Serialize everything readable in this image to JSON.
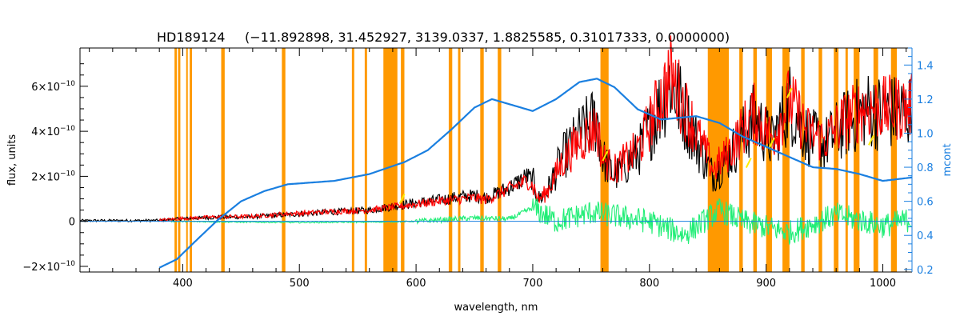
{
  "chart_data": {
    "type": "line",
    "title": "HD189124",
    "subtitle": "(−11.892898, 31.452927, 3139.0337, 1.8825585, 0.31017333, 0.0000000)",
    "xlabel": "wavelength, nm",
    "ylabel": "flux, units",
    "y2label": "mcont",
    "xlim": [
      312,
      1025
    ],
    "ylim": [
      -2.25e-10,
      7.7e-10
    ],
    "y2lim": [
      0.185,
      1.5
    ],
    "xticks": [
      {
        "v": 400,
        "label": "400"
      },
      {
        "v": 500,
        "label": "500"
      },
      {
        "v": 600,
        "label": "600"
      },
      {
        "v": 700,
        "label": "700"
      },
      {
        "v": 800,
        "label": "800"
      },
      {
        "v": 900,
        "label": "900"
      },
      {
        "v": 1000,
        "label": "1000"
      }
    ],
    "yticks": [
      {
        "v": -2e-10,
        "mant": "−2×10",
        "exp": "−10"
      },
      {
        "v": 0,
        "mant": "0",
        "exp": ""
      },
      {
        "v": 2e-10,
        "mant": "2×10",
        "exp": "−10"
      },
      {
        "v": 4e-10,
        "mant": "4×10",
        "exp": "−10"
      },
      {
        "v": 6e-10,
        "mant": "6×10",
        "exp": "−10"
      }
    ],
    "y2ticks": [
      {
        "v": 0.2,
        "label": "0.2"
      },
      {
        "v": 0.4,
        "label": "0.4"
      },
      {
        "v": 0.6,
        "label": "0.6"
      },
      {
        "v": 0.8,
        "label": "0.8"
      },
      {
        "v": 1.0,
        "label": "1.0"
      },
      {
        "v": 1.2,
        "label": "1.2"
      },
      {
        "v": 1.4,
        "label": "1.4"
      }
    ],
    "colors": {
      "observed": "#000000",
      "model": "#ff0000",
      "residual": "#22ee77",
      "mcont": "#1a7fe0",
      "masked": "#ff9900",
      "highlight": "#ffee00",
      "axis2": "#1a7fe0"
    },
    "masked_bands": [
      [
        393,
        395
      ],
      [
        396,
        398
      ],
      [
        403,
        404
      ],
      [
        406,
        408
      ],
      [
        433,
        436
      ],
      [
        485,
        488
      ],
      [
        545,
        547
      ],
      [
        556,
        558
      ],
      [
        572,
        584
      ],
      [
        587,
        590
      ],
      [
        628,
        631
      ],
      [
        636,
        638
      ],
      [
        655,
        658
      ],
      [
        670,
        673
      ],
      [
        758,
        765
      ],
      [
        850,
        868
      ],
      [
        877,
        880
      ],
      [
        889,
        892
      ],
      [
        900,
        905
      ],
      [
        914,
        920
      ],
      [
        930,
        933
      ],
      [
        945,
        948
      ],
      [
        958,
        962
      ],
      [
        968,
        970
      ],
      [
        975,
        980
      ],
      [
        992,
        996
      ],
      [
        1007,
        1012
      ]
    ],
    "series": [
      {
        "name": "flux",
        "points": [
          [
            312,
            3e-12
          ],
          [
            380,
            4e-12
          ],
          [
            400,
            1.2e-11
          ],
          [
            430,
            1.8e-11
          ],
          [
            460,
            2e-11
          ],
          [
            490,
            3e-11
          ],
          [
            510,
            3.6e-11
          ],
          [
            530,
            4.2e-11
          ],
          [
            560,
            5e-11
          ],
          [
            590,
            7.5e-11
          ],
          [
            620,
            9.5e-11
          ],
          [
            640,
            1.1e-10
          ],
          [
            650,
            1.15e-10
          ],
          [
            660,
            1.05e-10
          ],
          [
            680,
            1.5e-10
          ],
          [
            695,
            2e-10
          ],
          [
            700,
            1.8e-10
          ],
          [
            705,
            1e-10
          ],
          [
            712,
            1.3e-10
          ],
          [
            725,
            2.8e-10
          ],
          [
            740,
            3.8e-10
          ],
          [
            755,
            4.6e-10
          ],
          [
            760,
            2.8e-10
          ],
          [
            770,
            2e-10
          ],
          [
            790,
            3e-10
          ],
          [
            805,
            4.6e-10
          ],
          [
            818,
            6.3e-10
          ],
          [
            830,
            4.8e-10
          ],
          [
            845,
            3e-10
          ],
          [
            855,
            2e-10
          ],
          [
            870,
            3e-10
          ],
          [
            880,
            3.8e-10
          ],
          [
            890,
            4.6e-10
          ],
          [
            905,
            3.5e-10
          ],
          [
            920,
            5.3e-10
          ],
          [
            935,
            3.8e-10
          ],
          [
            950,
            3.4e-10
          ],
          [
            965,
            4.2e-10
          ],
          [
            985,
            5e-10
          ],
          [
            1000,
            4.8e-10
          ],
          [
            1025,
            4.9e-10
          ]
        ]
      },
      {
        "name": "model",
        "points": [
          [
            312,
            3e-12
          ],
          [
            380,
            5e-12
          ],
          [
            400,
            1.3e-11
          ],
          [
            430,
            2e-11
          ],
          [
            460,
            2.2e-11
          ],
          [
            490,
            3.4e-11
          ],
          [
            510,
            3.8e-11
          ],
          [
            530,
            4.4e-11
          ],
          [
            560,
            5e-11
          ],
          [
            590,
            7e-11
          ],
          [
            620,
            9e-11
          ],
          [
            640,
            1e-10
          ],
          [
            650,
            1.05e-10
          ],
          [
            660,
            9.5e-11
          ],
          [
            680,
            1.45e-10
          ],
          [
            695,
            1.8e-10
          ],
          [
            700,
            1.6e-10
          ],
          [
            705,
            9.5e-11
          ],
          [
            712,
            1.3e-10
          ],
          [
            725,
            2.6e-10
          ],
          [
            740,
            3.6e-10
          ],
          [
            755,
            4.2e-10
          ],
          [
            760,
            2.8e-10
          ],
          [
            770,
            2.3e-10
          ],
          [
            790,
            3.2e-10
          ],
          [
            805,
            4.9e-10
          ],
          [
            818,
            6.5e-10
          ],
          [
            830,
            5.1e-10
          ],
          [
            845,
            3.4e-10
          ],
          [
            855,
            2.3e-10
          ],
          [
            870,
            3.2e-10
          ],
          [
            880,
            4.1e-10
          ],
          [
            890,
            4.8e-10
          ],
          [
            905,
            3.7e-10
          ],
          [
            920,
            5.4e-10
          ],
          [
            935,
            4e-10
          ],
          [
            950,
            3.6e-10
          ],
          [
            965,
            4.4e-10
          ],
          [
            985,
            5.1e-10
          ],
          [
            1000,
            5e-10
          ],
          [
            1025,
            5.1e-10
          ]
        ]
      },
      {
        "name": "residual",
        "points": [
          [
            390,
            0.0
          ],
          [
            450,
            -3e-12
          ],
          [
            500,
            -5e-12
          ],
          [
            560,
            -3e-12
          ],
          [
            600,
            0.0
          ],
          [
            650,
            1.5e-11
          ],
          [
            680,
            1e-11
          ],
          [
            700,
            6e-11
          ],
          [
            720,
            0.0
          ],
          [
            750,
            4e-11
          ],
          [
            800,
            0.0
          ],
          [
            830,
            -6e-11
          ],
          [
            860,
            5e-11
          ],
          [
            880,
            0.0
          ],
          [
            920,
            -5e-11
          ],
          [
            960,
            3e-11
          ],
          [
            1000,
            -2e-11
          ],
          [
            1025,
            1e-11
          ]
        ]
      },
      {
        "name": "mcont",
        "axis": "y2",
        "points": [
          [
            380,
            0.21
          ],
          [
            395,
            0.26
          ],
          [
            410,
            0.36
          ],
          [
            430,
            0.49
          ],
          [
            450,
            0.6
          ],
          [
            470,
            0.66
          ],
          [
            490,
            0.7
          ],
          [
            510,
            0.71
          ],
          [
            530,
            0.72
          ],
          [
            560,
            0.76
          ],
          [
            590,
            0.83
          ],
          [
            610,
            0.9
          ],
          [
            630,
            1.02
          ],
          [
            650,
            1.15
          ],
          [
            665,
            1.2
          ],
          [
            680,
            1.17
          ],
          [
            700,
            1.13
          ],
          [
            720,
            1.2
          ],
          [
            740,
            1.3
          ],
          [
            755,
            1.32
          ],
          [
            770,
            1.27
          ],
          [
            790,
            1.14
          ],
          [
            810,
            1.08
          ],
          [
            840,
            1.1
          ],
          [
            860,
            1.06
          ],
          [
            880,
            0.98
          ],
          [
            900,
            0.92
          ],
          [
            920,
            0.86
          ],
          [
            940,
            0.8
          ],
          [
            960,
            0.79
          ],
          [
            980,
            0.76
          ],
          [
            1000,
            0.72
          ],
          [
            1025,
            0.74
          ]
        ]
      }
    ]
  }
}
